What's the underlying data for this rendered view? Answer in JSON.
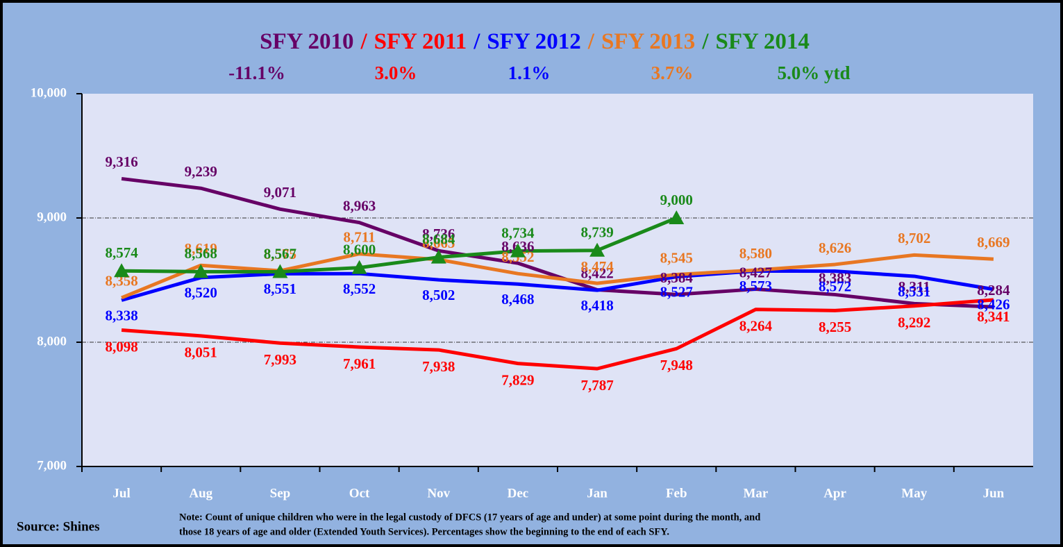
{
  "chart_data": {
    "type": "line",
    "title_separator": "/",
    "annotations": [
      "-11.1%",
      "3.0%",
      "1.1%",
      "3.7%",
      "5.0% ytd"
    ],
    "categories": [
      "Jul",
      "Aug",
      "Sep",
      "Oct",
      "Nov",
      "Dec",
      "Jan",
      "Feb",
      "Mar",
      "Apr",
      "May",
      "Jun"
    ],
    "series": [
      {
        "name": "SFY 2010",
        "color": "#660066",
        "values": [
          9316,
          9239,
          9071,
          8963,
          8736,
          8636,
          8422,
          8384,
          8427,
          8383,
          8311,
          8284
        ],
        "value_labels": [
          "9,316",
          "9,239",
          "9,071",
          "8,963",
          "8,736",
          "8,636",
          "8,422",
          "8,384",
          "8,427",
          "8,383",
          "8,311",
          "8,284"
        ]
      },
      {
        "name": "SFY 2011",
        "color": "#ff0000",
        "values": [
          8098,
          8051,
          7993,
          7961,
          7938,
          7829,
          7787,
          7948,
          8264,
          8255,
          8292,
          8341
        ],
        "value_labels": [
          "8,098",
          "8,051",
          "7,993",
          "7,961",
          "7,938",
          "7,829",
          "7,787",
          "7,948",
          "8,264",
          "8,255",
          "8,292",
          "8,341"
        ]
      },
      {
        "name": "SFY 2012",
        "color": "#0000ff",
        "values": [
          8338,
          8520,
          8551,
          8552,
          8502,
          8468,
          8418,
          8527,
          8573,
          8572,
          8531,
          8426
        ],
        "value_labels": [
          "8,338",
          "8,520",
          "8,551",
          "8,552",
          "8,502",
          "8,468",
          "8,418",
          "8,527",
          "8,573",
          "8,572",
          "8,531",
          "8,426"
        ]
      },
      {
        "name": "SFY 2013",
        "color": "#e87722",
        "values": [
          8358,
          8619,
          8575,
          8711,
          8665,
          8552,
          8474,
          8545,
          8580,
          8626,
          8702,
          8669
        ],
        "value_labels": [
          "8,358",
          "8,619",
          "8,575",
          "8,711",
          "8,665",
          "8,552",
          "8,474",
          "8,545",
          "8,580",
          "8,626",
          "8,702",
          "8,669"
        ]
      },
      {
        "name": "SFY 2014",
        "color": "#1a8a1a",
        "marker": "triangle",
        "values": [
          8574,
          8568,
          8567,
          8600,
          8684,
          8734,
          8739,
          9000,
          null,
          null,
          null,
          null
        ],
        "value_labels": [
          "8,574",
          "8,568",
          "8,567",
          "8,600",
          "8,684",
          "8,734",
          "8,739",
          "9,000",
          null,
          null,
          null,
          null
        ]
      }
    ],
    "ylim": [
      7000,
      10000
    ],
    "yticks": [
      {
        "value": 7000,
        "label": "7,000"
      },
      {
        "value": 8000,
        "label": "8,000"
      },
      {
        "value": 9000,
        "label": "9,000"
      },
      {
        "value": 10000,
        "label": "10,000"
      }
    ],
    "grid": true,
    "source": "Source: Shines",
    "note": [
      "Note:  Count of unique children who were in the legal custody of DFCS (17 years of age and under) at some point during the month, and",
      "those 18 years of age and older (Extended Youth Services).  Percentages show the beginning to the end of each SFY."
    ]
  }
}
